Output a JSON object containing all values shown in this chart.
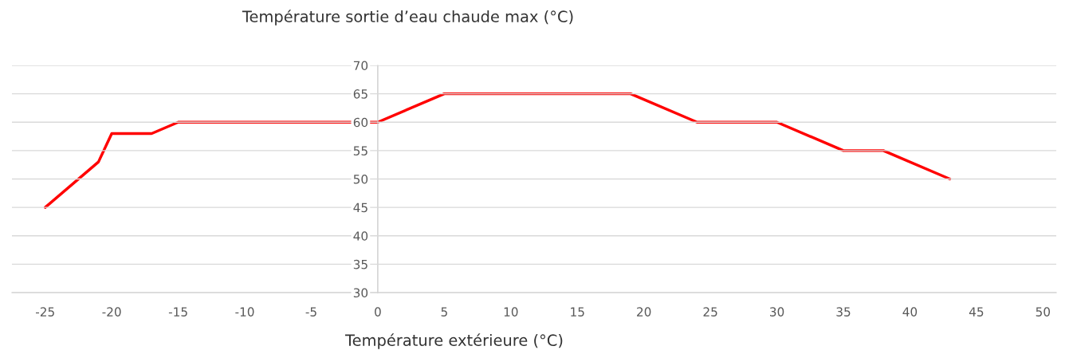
{
  "chart_data": {
    "type": "line",
    "title": "Température sortie d’eau chaude max (°C)",
    "xlabel": "Température extérieure (°C)",
    "series": [
      {
        "color": "#ff0000",
        "x": [
          -25,
          -21,
          -20,
          -17,
          -15,
          0,
          5,
          19,
          24,
          30,
          35,
          38,
          43
        ],
        "values": [
          45,
          53,
          58,
          58,
          60,
          60,
          65,
          65,
          60,
          60,
          55,
          55,
          50
        ]
      }
    ],
    "xlim": [
      -27.5,
      51
    ],
    "xticks": [
      -25,
      -20,
      -15,
      -10,
      -5,
      0,
      5,
      10,
      15,
      20,
      25,
      30,
      35,
      40,
      45,
      50
    ],
    "ylim": [
      30,
      70
    ],
    "yticks": [
      30,
      35,
      40,
      45,
      50,
      55,
      60,
      65,
      70
    ],
    "grid": "y",
    "marker": "none",
    "line_style": "solid"
  }
}
